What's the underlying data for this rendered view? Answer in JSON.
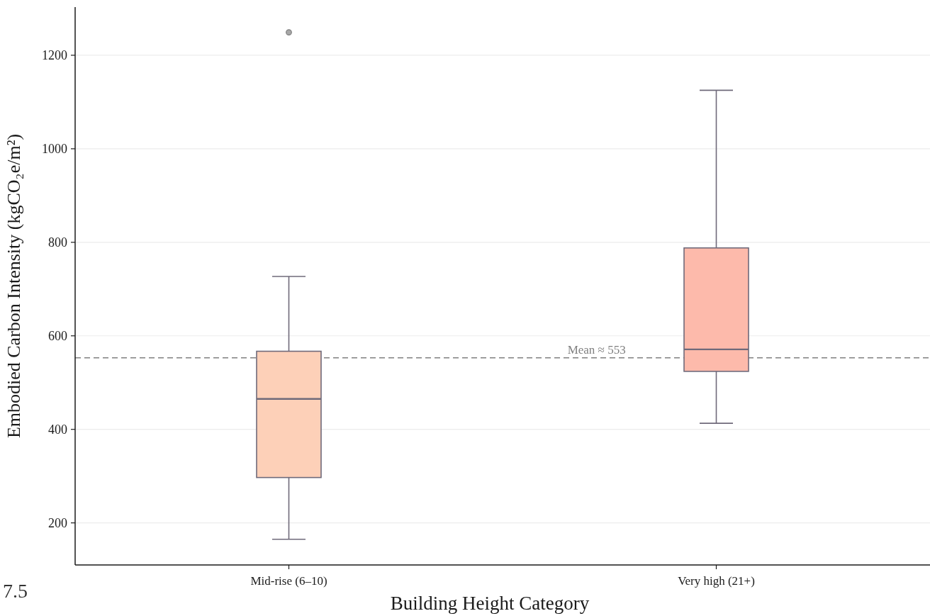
{
  "chart_data": {
    "type": "box",
    "xlabel": "Building Height Category",
    "ylabel": "Embodied Carbon Intensity (kgCO₂e/m²)",
    "categories": [
      "Mid-rise (6–10)",
      "Very high (21+)"
    ],
    "boxes": [
      {
        "low": 165,
        "q1": 297,
        "median": 465,
        "q3": 567,
        "high": 727,
        "outliers": [
          1249
        ]
      },
      {
        "low": 413,
        "q1": 524,
        "median": 571,
        "q3": 788,
        "high": 1125
      }
    ],
    "colors": [
      "#fdd0b8",
      "#fdbaab"
    ],
    "ylim": [
      110,
      1303
    ],
    "yticks": [
      200,
      400,
      600,
      800,
      1000,
      1200
    ],
    "grid": "y",
    "ref_lines": [
      {
        "axis": "y",
        "value": 553,
        "label": "Mean ≈ 553",
        "color": "#808080",
        "line_style": "dashed"
      }
    ],
    "annotations": [
      "7.5"
    ]
  }
}
